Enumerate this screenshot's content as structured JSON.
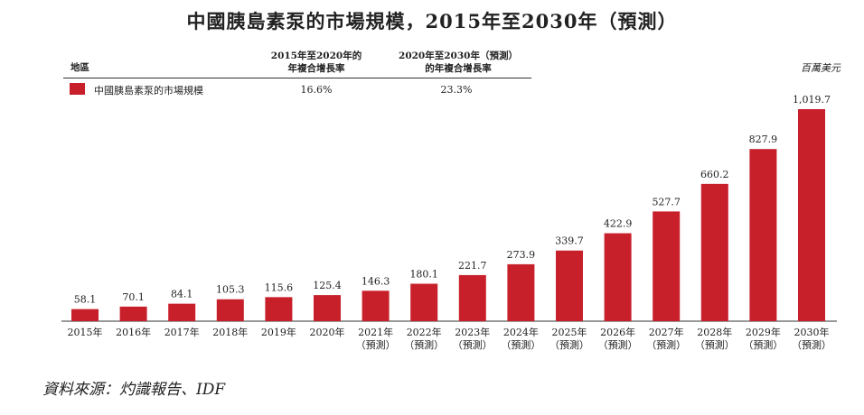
{
  "title": "中國胰島素泵的市場規模，2015年至2030年（預測）",
  "table": {
    "region_header": "地區",
    "cagr1_header_line1": "2015年至2020年的",
    "cagr1_header_line2": "年複合增長率",
    "cagr2_header_line1": "2020年至2030年（預測）",
    "cagr2_header_line2": "的年複合增長率",
    "row_label": "中國胰島素泵的市場規模",
    "cagr1_value": "16.6%",
    "cagr2_value": "23.3%"
  },
  "unit": "百萬美元",
  "source": "資料來源：灼識報告、IDF",
  "colors": {
    "bar": "#c8202b"
  },
  "chart_data": {
    "type": "bar",
    "title": "中國胰島素泵的市場規模，2015年至2030年（預測）",
    "categories": [
      "2015年",
      "2016年",
      "2017年",
      "2018年",
      "2019年",
      "2020年",
      "2021年\n（預測）",
      "2022年\n（預測）",
      "2023年\n（預測）",
      "2024年\n（預測）",
      "2025年\n（預測）",
      "2026年\n（預測）",
      "2027年\n（預測）",
      "2028年\n（預測）",
      "2029年\n（預測）",
      "2030年\n（預測）"
    ],
    "values": [
      58.1,
      70.1,
      84.1,
      105.3,
      115.6,
      125.4,
      146.3,
      180.1,
      221.7,
      273.9,
      339.7,
      422.9,
      527.7,
      660.2,
      827.9,
      1019.7
    ],
    "value_labels": [
      "58.1",
      "70.1",
      "84.1",
      "105.3",
      "115.6",
      "125.4",
      "146.3",
      "180.1",
      "221.7",
      "273.9",
      "339.7",
      "422.9",
      "527.7",
      "660.2",
      "827.9",
      "1,019.7"
    ],
    "series": [
      {
        "name": "中國胰島素泵的市場規模",
        "values": [
          58.1,
          70.1,
          84.1,
          105.3,
          115.6,
          125.4,
          146.3,
          180.1,
          221.7,
          273.9,
          339.7,
          422.9,
          527.7,
          660.2,
          827.9,
          1019.7
        ]
      }
    ],
    "ylabel": "百萬美元",
    "xlabel": "",
    "ylim": [
      0,
      1019.7
    ],
    "grid": false,
    "legend": "top-left"
  }
}
